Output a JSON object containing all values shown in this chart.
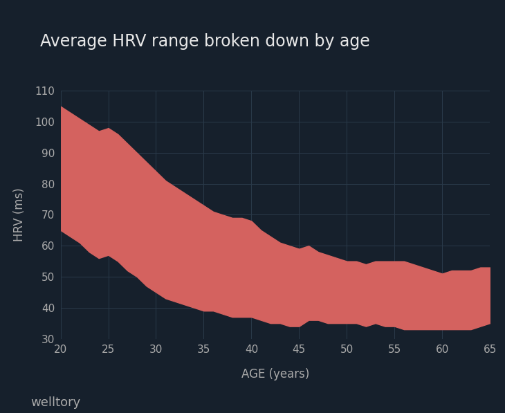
{
  "title": "Average HRV range broken down by age",
  "xlabel": "AGE (years)",
  "ylabel": "HRV (ms)",
  "watermark": "welltory",
  "bg_color": "#16202c",
  "fill_color": "#d4625f",
  "grid_color": "#2a3a4a",
  "text_color": "#e8e8e8",
  "label_color": "#aaaaaa",
  "xlim": [
    20,
    65
  ],
  "ylim": [
    30,
    110
  ],
  "xticks": [
    20,
    25,
    30,
    35,
    40,
    45,
    50,
    55,
    60,
    65
  ],
  "yticks": [
    30,
    40,
    50,
    60,
    70,
    80,
    90,
    100,
    110
  ],
  "ages": [
    20,
    21,
    22,
    23,
    24,
    25,
    26,
    27,
    28,
    29,
    30,
    31,
    32,
    33,
    34,
    35,
    36,
    37,
    38,
    39,
    40,
    41,
    42,
    43,
    44,
    45,
    46,
    47,
    48,
    49,
    50,
    51,
    52,
    53,
    54,
    55,
    56,
    57,
    58,
    59,
    60,
    61,
    62,
    63,
    64,
    65
  ],
  "upper": [
    105,
    103,
    101,
    99,
    97,
    98,
    96,
    93,
    90,
    87,
    84,
    81,
    79,
    77,
    75,
    73,
    71,
    70,
    69,
    69,
    68,
    65,
    63,
    61,
    60,
    59,
    60,
    58,
    57,
    56,
    55,
    55,
    54,
    55,
    55,
    55,
    55,
    54,
    53,
    52,
    51,
    52,
    52,
    52,
    53,
    53
  ],
  "lower": [
    65,
    63,
    61,
    58,
    56,
    57,
    55,
    52,
    50,
    47,
    45,
    43,
    42,
    41,
    40,
    39,
    39,
    38,
    37,
    37,
    37,
    36,
    35,
    35,
    34,
    34,
    36,
    36,
    35,
    35,
    35,
    35,
    34,
    35,
    34,
    34,
    33,
    33,
    33,
    33,
    33,
    33,
    33,
    33,
    34,
    35
  ]
}
